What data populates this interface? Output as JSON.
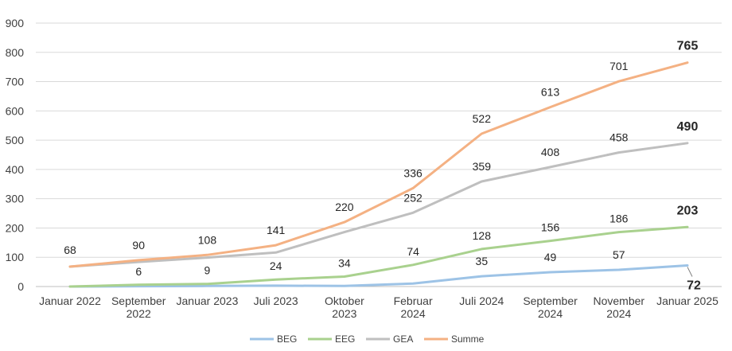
{
  "chart_data": {
    "type": "line",
    "title": "",
    "xlabel": "",
    "ylabel": "",
    "ylim": [
      0,
      900
    ],
    "yticks": [
      0,
      100,
      200,
      300,
      400,
      500,
      600,
      700,
      800,
      900
    ],
    "grid": true,
    "legend_position": "bottom",
    "categories": [
      [
        "Januar 2022"
      ],
      [
        "September",
        "2022"
      ],
      [
        "Januar 2023"
      ],
      [
        "Juli 2023"
      ],
      [
        "Oktober",
        "2023"
      ],
      [
        "Februar",
        "2024"
      ],
      [
        "Juli 2024"
      ],
      [
        "September",
        "2024"
      ],
      [
        "November",
        "2024"
      ],
      [
        "Januar 2025"
      ]
    ],
    "series": [
      {
        "name": "BEG",
        "color": "#9dc3e6",
        "values": [
          0,
          1,
          2,
          3,
          2,
          10,
          35,
          49,
          57,
          72
        ],
        "labels": [
          null,
          null,
          null,
          null,
          null,
          null,
          "35",
          "49",
          "57",
          "72"
        ]
      },
      {
        "name": "EEG",
        "color": "#a9d18e",
        "values": [
          0,
          6,
          9,
          24,
          34,
          74,
          128,
          156,
          186,
          203
        ],
        "labels": [
          null,
          "6",
          "9",
          "24",
          "34",
          "74",
          "128",
          "156",
          "186",
          "203"
        ]
      },
      {
        "name": "GEA",
        "color": "#bfbfbf",
        "values": [
          68,
          84,
          99,
          116,
          186,
          252,
          359,
          408,
          458,
          490
        ],
        "labels": [
          null,
          null,
          null,
          null,
          null,
          "252",
          "359",
          "408",
          "458",
          "490"
        ]
      },
      {
        "name": "Summe",
        "color": "#f4b183",
        "values": [
          68,
          90,
          108,
          141,
          220,
          336,
          522,
          613,
          701,
          765
        ],
        "labels": [
          "68",
          "90",
          "108",
          "141",
          "220",
          "336",
          "522",
          "613",
          "701",
          "765"
        ]
      }
    ]
  }
}
